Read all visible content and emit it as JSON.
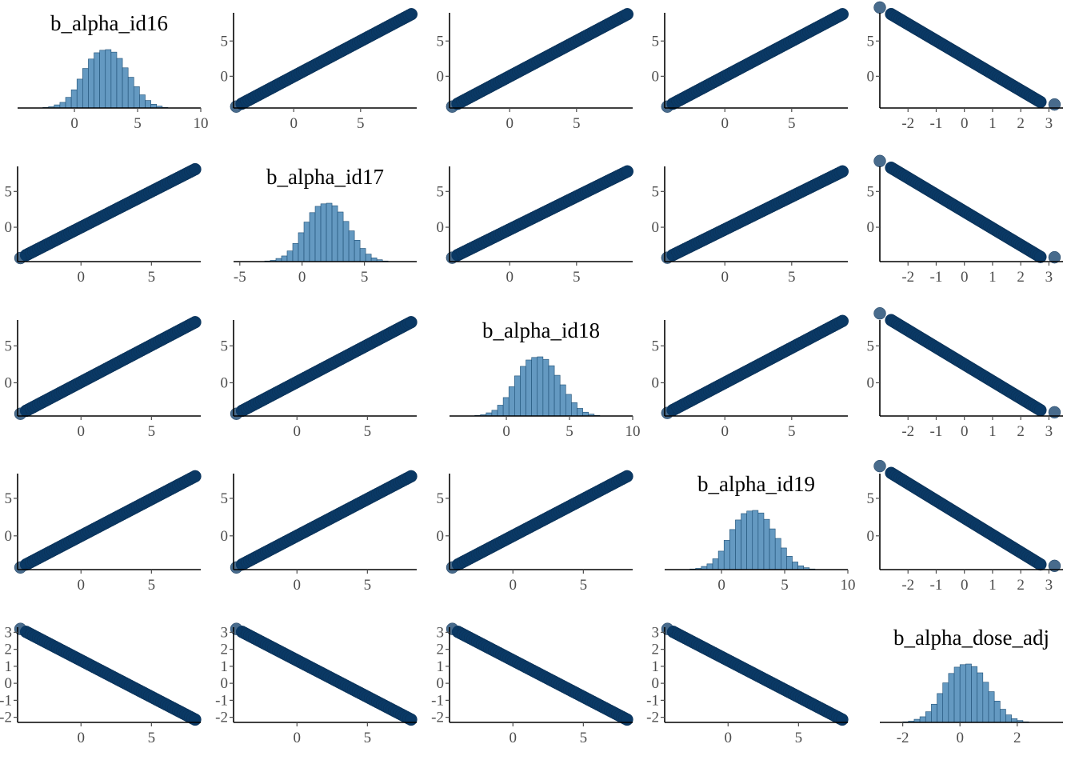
{
  "chart_data": {
    "type": "pairs",
    "variables": [
      "b_alpha_id16",
      "b_alpha_id17",
      "b_alpha_id18",
      "b_alpha_id19",
      "b_alpha_dose_adj"
    ],
    "colors": {
      "histogram_fill": "#6499c1",
      "histogram_edge": "#1e4f75",
      "scatter": "#0b3a66"
    },
    "diagonal": [
      {
        "title": "b_alpha_id16",
        "xlim": [
          -4.5,
          10
        ],
        "xticks": [
          0,
          5,
          10
        ],
        "bins": {
          "start": -2.5,
          "width": 0.45,
          "counts": [
            1,
            2,
            5,
            9,
            17,
            29,
            46,
            63,
            78,
            88,
            92,
            93,
            89,
            79,
            64,
            49,
            34,
            21,
            12,
            6,
            3,
            1
          ]
        }
      },
      {
        "title": "b_alpha_id17",
        "xlim": [
          -5.5,
          9.2
        ],
        "xticks": [
          -5,
          0,
          5
        ],
        "bins": {
          "start": -3.0,
          "width": 0.45,
          "counts": [
            1,
            2,
            5,
            9,
            17,
            29,
            46,
            63,
            78,
            88,
            92,
            93,
            89,
            79,
            64,
            49,
            34,
            21,
            12,
            6,
            3,
            1
          ]
        }
      },
      {
        "title": "b_alpha_id18",
        "xlim": [
          -4.5,
          10
        ],
        "xticks": [
          0,
          5,
          10
        ],
        "bins": {
          "start": -2.5,
          "width": 0.45,
          "counts": [
            1,
            2,
            5,
            9,
            17,
            29,
            46,
            63,
            78,
            88,
            92,
            93,
            89,
            79,
            64,
            49,
            34,
            21,
            12,
            6,
            3,
            1
          ]
        }
      },
      {
        "title": "b_alpha_id19",
        "xlim": [
          -4.5,
          10
        ],
        "xticks": [
          0,
          5,
          10
        ],
        "bins": {
          "start": -2.5,
          "width": 0.45,
          "counts": [
            1,
            2,
            5,
            9,
            17,
            29,
            46,
            63,
            78,
            88,
            92,
            93,
            89,
            79,
            64,
            49,
            34,
            21,
            12,
            6,
            3,
            1
          ]
        }
      },
      {
        "title": "b_alpha_dose_adj",
        "xlim": [
          -2.8,
          3.6
        ],
        "xticks": [
          -2,
          0,
          2
        ],
        "bins": {
          "start": -2.0,
          "width": 0.2,
          "counts": [
            1,
            2,
            5,
            9,
            17,
            29,
            46,
            63,
            78,
            88,
            92,
            93,
            89,
            79,
            64,
            49,
            34,
            21,
            12,
            6,
            3,
            1
          ]
        }
      }
    ],
    "scatter_panels": [
      {
        "row": 0,
        "col": 1,
        "xlim": [
          -4.5,
          9.2
        ],
        "ylim": [
          -4.5,
          9
        ],
        "xticks": [
          0,
          5
        ],
        "yticks": [
          0,
          5
        ],
        "x_range": [
          -3.9,
          8.8
        ],
        "slope": 1,
        "intercept": 0
      },
      {
        "row": 0,
        "col": 2,
        "xlim": [
          -4.5,
          9.2
        ],
        "ylim": [
          -4.5,
          9
        ],
        "xticks": [
          0,
          5
        ],
        "yticks": [
          0,
          5
        ],
        "x_range": [
          -3.9,
          8.8
        ],
        "slope": 1,
        "intercept": 0
      },
      {
        "row": 0,
        "col": 3,
        "xlim": [
          -4.5,
          9.2
        ],
        "ylim": [
          -4.5,
          9
        ],
        "xticks": [
          0,
          5
        ],
        "yticks": [
          0,
          5
        ],
        "x_range": [
          -3.9,
          8.8
        ],
        "slope": 1,
        "intercept": 0
      },
      {
        "row": 0,
        "col": 4,
        "xlim": [
          -3.0,
          3.5
        ],
        "ylim": [
          -4.5,
          9
        ],
        "xticks": [
          -2,
          -1,
          0,
          1,
          2,
          3
        ],
        "yticks": [
          0,
          5
        ],
        "x_range": [
          -2.6,
          2.7
        ],
        "slope": -2.35,
        "intercept": 2.7,
        "outlier": [
          3.2,
          -4.0
        ]
      },
      {
        "row": 1,
        "col": 0,
        "xlim": [
          -4.5,
          8.5
        ],
        "ylim": [
          -4.8,
          8.5
        ],
        "xticks": [
          0,
          5
        ],
        "yticks": [
          0,
          5
        ],
        "x_range": [
          -3.9,
          8.1
        ],
        "slope": 1,
        "intercept": 0
      },
      {
        "row": 1,
        "col": 2,
        "xlim": [
          -4.5,
          9.2
        ],
        "ylim": [
          -4.8,
          8.5
        ],
        "xticks": [
          0,
          5
        ],
        "yticks": [
          0,
          5
        ],
        "x_range": [
          -3.9,
          8.8
        ],
        "slope": 0.92,
        "intercept": -0.3
      },
      {
        "row": 1,
        "col": 3,
        "xlim": [
          -4.5,
          9.2
        ],
        "ylim": [
          -4.8,
          8.5
        ],
        "xticks": [
          0,
          5
        ],
        "yticks": [
          0,
          5
        ],
        "x_range": [
          -3.9,
          8.8
        ],
        "slope": 0.92,
        "intercept": -0.3
      },
      {
        "row": 1,
        "col": 4,
        "xlim": [
          -3.0,
          3.5
        ],
        "ylim": [
          -4.8,
          8.5
        ],
        "xticks": [
          -2,
          -1,
          0,
          1,
          2,
          3
        ],
        "yticks": [
          0,
          5
        ],
        "x_range": [
          -2.6,
          2.7
        ],
        "slope": -2.35,
        "intercept": 2.2,
        "outlier": [
          3.2,
          -4.2
        ]
      },
      {
        "row": 2,
        "col": 0,
        "xlim": [
          -4.5,
          8.5
        ],
        "ylim": [
          -4.5,
          8.5
        ],
        "xticks": [
          0,
          5
        ],
        "yticks": [
          0,
          5
        ],
        "x_range": [
          -3.9,
          8.1
        ],
        "slope": 1,
        "intercept": 0.1
      },
      {
        "row": 2,
        "col": 1,
        "xlim": [
          -4.5,
          8.5
        ],
        "ylim": [
          -4.5,
          8.5
        ],
        "xticks": [
          0,
          5
        ],
        "yticks": [
          0,
          5
        ],
        "x_range": [
          -3.9,
          8.1
        ],
        "slope": 1,
        "intercept": 0.1
      },
      {
        "row": 2,
        "col": 3,
        "xlim": [
          -4.5,
          9.2
        ],
        "ylim": [
          -4.5,
          8.5
        ],
        "xticks": [
          0,
          5
        ],
        "yticks": [
          0,
          5
        ],
        "x_range": [
          -3.9,
          8.8
        ],
        "slope": 0.95,
        "intercept": 0
      },
      {
        "row": 2,
        "col": 4,
        "xlim": [
          -3.0,
          3.5
        ],
        "ylim": [
          -4.5,
          8.5
        ],
        "xticks": [
          -2,
          -1,
          0,
          1,
          2,
          3
        ],
        "yticks": [
          0,
          5
        ],
        "x_range": [
          -2.6,
          2.7
        ],
        "slope": -2.3,
        "intercept": 2.5,
        "outlier": [
          3.2,
          -4.0
        ]
      },
      {
        "row": 3,
        "col": 0,
        "xlim": [
          -4.5,
          8.5
        ],
        "ylim": [
          -4.5,
          8.3
        ],
        "xticks": [
          0,
          5
        ],
        "yticks": [
          0,
          5
        ],
        "x_range": [
          -3.9,
          8.1
        ],
        "slope": 0.98,
        "intercept": 0
      },
      {
        "row": 3,
        "col": 1,
        "xlim": [
          -4.5,
          8.5
        ],
        "ylim": [
          -4.5,
          8.3
        ],
        "xticks": [
          0,
          5
        ],
        "yticks": [
          0,
          5
        ],
        "x_range": [
          -3.9,
          8.1
        ],
        "slope": 0.98,
        "intercept": 0
      },
      {
        "row": 3,
        "col": 2,
        "xlim": [
          -4.5,
          8.5
        ],
        "ylim": [
          -4.5,
          8.3
        ],
        "xticks": [
          0,
          5
        ],
        "yticks": [
          0,
          5
        ],
        "x_range": [
          -3.9,
          8.1
        ],
        "slope": 0.98,
        "intercept": 0
      },
      {
        "row": 3,
        "col": 4,
        "xlim": [
          -3.0,
          3.5
        ],
        "ylim": [
          -4.5,
          8.3
        ],
        "xticks": [
          -2,
          -1,
          0,
          1,
          2,
          3
        ],
        "yticks": [
          0,
          5
        ],
        "x_range": [
          -2.6,
          2.7
        ],
        "slope": -2.3,
        "intercept": 2.4,
        "outlier": [
          3.2,
          -4.0
        ]
      },
      {
        "row": 4,
        "col": 0,
        "xlim": [
          -4.5,
          8.5
        ],
        "ylim": [
          -2.3,
          3.3
        ],
        "xticks": [
          0,
          5
        ],
        "yticks": [
          -2,
          -1,
          0,
          1,
          2,
          3
        ],
        "x_range": [
          -3.9,
          8.1
        ],
        "slope": -0.43,
        "intercept": 1.35
      },
      {
        "row": 4,
        "col": 1,
        "xlim": [
          -4.5,
          8.5
        ],
        "ylim": [
          -2.3,
          3.3
        ],
        "xticks": [
          0,
          5
        ],
        "yticks": [
          -2,
          -1,
          0,
          1,
          2,
          3
        ],
        "x_range": [
          -3.9,
          8.1
        ],
        "slope": -0.43,
        "intercept": 1.35
      },
      {
        "row": 4,
        "col": 2,
        "xlim": [
          -4.5,
          8.5
        ],
        "ylim": [
          -2.3,
          3.3
        ],
        "xticks": [
          0,
          5
        ],
        "yticks": [
          -2,
          -1,
          0,
          1,
          2,
          3
        ],
        "x_range": [
          -3.9,
          8.1
        ],
        "slope": -0.43,
        "intercept": 1.35
      },
      {
        "row": 4,
        "col": 3,
        "xlim": [
          -4.5,
          8.5
        ],
        "ylim": [
          -2.3,
          3.3
        ],
        "xticks": [
          0,
          5
        ],
        "yticks": [
          -2,
          -1,
          0,
          1,
          2,
          3
        ],
        "x_range": [
          -3.9,
          8.1
        ],
        "slope": -0.43,
        "intercept": 1.35
      }
    ]
  }
}
